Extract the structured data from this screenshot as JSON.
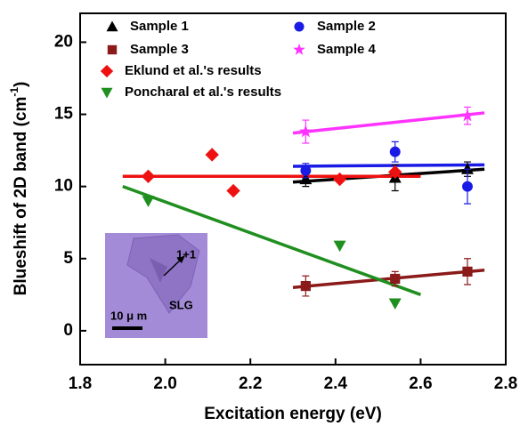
{
  "chart_data": {
    "type": "scatter",
    "x_label": "Excitation energy (eV)",
    "y_label": {
      "text": "Blueshift of 2D band (cm",
      "sup": "-1",
      "end": ")"
    },
    "xlim": [
      1.8,
      2.8
    ],
    "ylim": [
      -2.35,
      22
    ],
    "xticks": [
      1.8,
      {
        "value": 2,
        "label": "2.0"
      },
      2.2,
      2.4,
      2.6,
      2.8
    ],
    "yticks": [
      0,
      5,
      10,
      15,
      20
    ],
    "series": [
      {
        "name": "Sample 1",
        "color": "#000000",
        "marker": "triangle",
        "x": [
          2.33,
          2.54,
          2.71
        ],
        "values": [
          10.5,
          10.6,
          11.2
        ],
        "errors": [
          0.5,
          0.9,
          0.5
        ]
      },
      {
        "name": "Sample 2",
        "color": "#1a1ae6",
        "marker": "circle",
        "x": [
          2.33,
          2.54,
          2.71
        ],
        "values": [
          11.1,
          12.4,
          10.0
        ],
        "errors": [
          0.5,
          0.7,
          1.2
        ]
      },
      {
        "name": "Sample 3",
        "color": "#8b1a1a",
        "marker": "square",
        "x": [
          2.33,
          2.54,
          2.71
        ],
        "values": [
          3.1,
          3.6,
          4.1
        ],
        "errors": [
          0.7,
          0.5,
          0.9
        ]
      },
      {
        "name": "Sample 4",
        "color": "#ff33ff",
        "marker": "star",
        "x": [
          2.33,
          2.71
        ],
        "values": [
          13.8,
          14.9
        ],
        "errors": [
          0.8,
          0.6
        ]
      },
      {
        "name": "Eklund et al.'s results",
        "color": "#ee1111",
        "marker": "diamond",
        "x": [
          1.96,
          2.11,
          2.16,
          2.41,
          2.54
        ],
        "values": [
          10.7,
          12.2,
          9.7,
          10.5,
          11.0
        ]
      },
      {
        "name": "Poncharal et al.'s results",
        "color": "#1f8f1f",
        "marker": "triangle-down",
        "x": [
          1.96,
          2.41,
          2.54
        ],
        "values": [
          9.0,
          5.9,
          1.9
        ]
      }
    ],
    "fits": [
      {
        "color": "#000000",
        "x": [
          2.3,
          2.75
        ],
        "values": [
          10.3,
          11.2
        ]
      },
      {
        "color": "#1a1ae6",
        "x": [
          2.3,
          2.75
        ],
        "values": [
          11.4,
          11.5
        ]
      },
      {
        "color": "#8b1a1a",
        "x": [
          2.3,
          2.75
        ],
        "values": [
          3.0,
          4.2
        ]
      },
      {
        "color": "#ff33ff",
        "x": [
          2.3,
          2.75
        ],
        "values": [
          13.7,
          15.1
        ]
      },
      {
        "color": "#ee1111",
        "x": [
          1.9,
          2.6
        ],
        "values": [
          10.7,
          10.7
        ]
      },
      {
        "color": "#1f8f1f",
        "x": [
          1.9,
          2.6
        ],
        "values": [
          10.0,
          2.5
        ]
      }
    ],
    "inset": {
      "label_layer": "1+1",
      "label_sample": "SLG",
      "scale": "10 μ m"
    }
  }
}
